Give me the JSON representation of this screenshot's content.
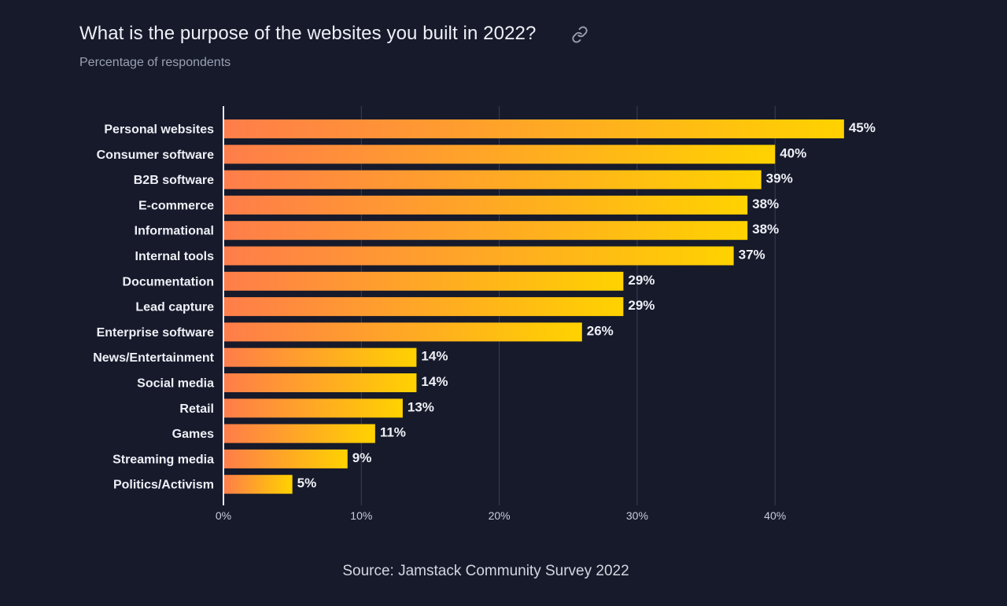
{
  "header": {
    "title": "What is the purpose of the websites you built in 2022?",
    "subtitle": "Percentage of respondents",
    "link_icon": "link-icon"
  },
  "footer": {
    "source": "Source: Jamstack Community Survey 2022"
  },
  "colors": {
    "background": "#161a2b",
    "bar_start": "#ff7d4a",
    "bar_end": "#ffd200",
    "grid": "#3a3f55",
    "axis": "#e6e8ef"
  },
  "chart_data": {
    "type": "bar",
    "orientation": "horizontal",
    "title": "What is the purpose of the websites you built in 2022?",
    "subtitle": "Percentage of respondents",
    "xlabel": "",
    "ylabel": "",
    "xlim": [
      0,
      45
    ],
    "ticks": [
      0,
      10,
      20,
      30,
      40
    ],
    "tick_labels": [
      "0%",
      "10%",
      "20%",
      "30%",
      "40%"
    ],
    "grid": true,
    "categories": [
      "Personal websites",
      "Consumer software",
      "B2B software",
      "E-commerce",
      "Informational",
      "Internal tools",
      "Documentation",
      "Lead capture",
      "Enterprise software",
      "News/Entertainment",
      "Social media",
      "Retail",
      "Games",
      "Streaming media",
      "Politics/Activism"
    ],
    "values": [
      45,
      40,
      39,
      38,
      38,
      37,
      29,
      29,
      26,
      14,
      14,
      13,
      11,
      9,
      5
    ],
    "value_labels": [
      "45%",
      "40%",
      "39%",
      "38%",
      "38%",
      "37%",
      "29%",
      "29%",
      "26%",
      "14%",
      "14%",
      "13%",
      "11%",
      "9%",
      "5%"
    ]
  }
}
